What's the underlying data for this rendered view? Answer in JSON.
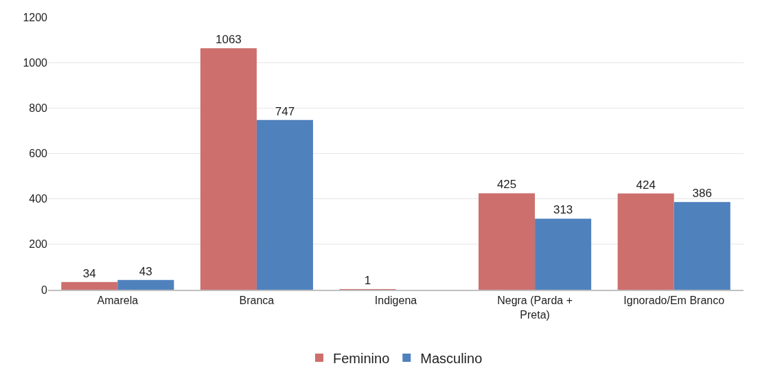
{
  "chart_data": {
    "type": "bar",
    "categories": [
      "Amarela",
      "Branca",
      "Indigena",
      "Negra (Parda + Preta)",
      "Ignorado/Em Branco"
    ],
    "series": [
      {
        "name": "Feminino",
        "color": "#cd6f6d",
        "values": [
          34,
          1063,
          1,
          425,
          424
        ]
      },
      {
        "name": "Masculino",
        "color": "#4f81bd",
        "values": [
          43,
          747,
          null,
          313,
          386
        ]
      }
    ],
    "ylim": [
      0,
      1200
    ],
    "yticks": [
      0,
      200,
      400,
      600,
      800,
      1000,
      1200
    ],
    "grid": "y",
    "legend": "bottom",
    "data_labels": true
  }
}
